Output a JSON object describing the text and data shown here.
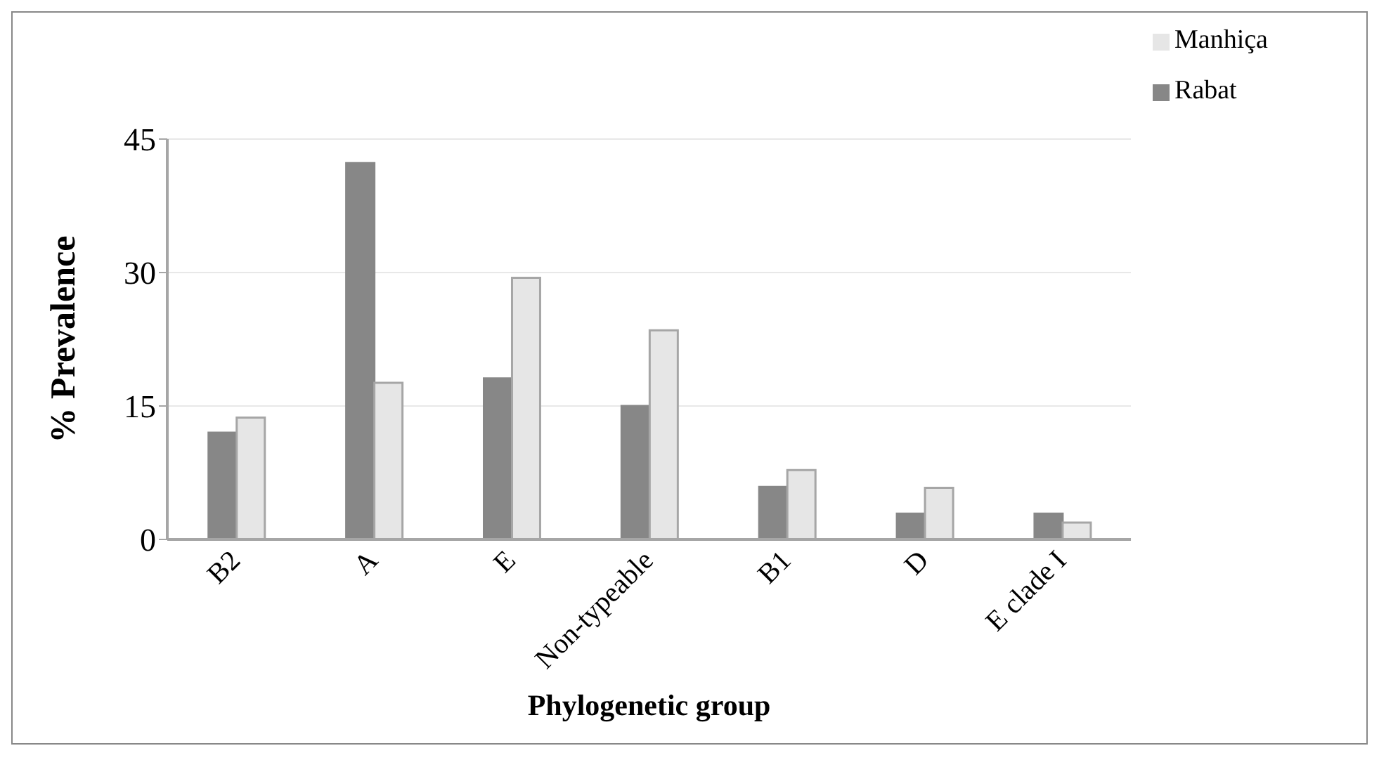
{
  "chart_data": {
    "type": "bar",
    "xlabel": "Phylogenetic group",
    "ylabel": "% Prevalence",
    "categories": [
      "B2",
      "A",
      "E",
      "Non-typeable",
      "B1",
      "D",
      "E clade I"
    ],
    "series": [
      {
        "name": "Rabat",
        "color": "#878787",
        "values": [
          12.0,
          42.3,
          18.1,
          15.0,
          5.9,
          2.9,
          2.9
        ]
      },
      {
        "name": "Manhiça",
        "color": "#e6e6e6",
        "values": [
          13.7,
          17.6,
          29.4,
          23.5,
          7.8,
          5.8,
          1.9
        ]
      }
    ],
    "ylim": [
      0,
      45
    ],
    "yticks": [
      0,
      15,
      30,
      45
    ],
    "grid": "y",
    "legend": "top right"
  }
}
